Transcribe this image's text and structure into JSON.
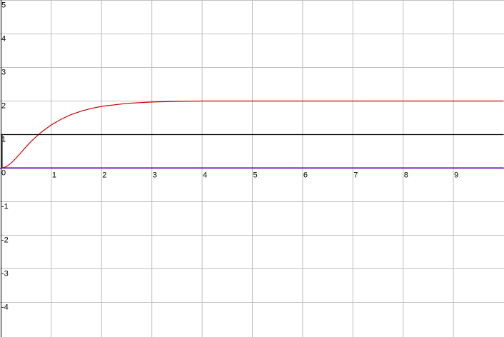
{
  "chart_data": {
    "type": "line",
    "title": "",
    "xlabel": "",
    "ylabel": "",
    "xlim": [
      0,
      10
    ],
    "ylim": [
      -4.7,
      5
    ],
    "grid": true,
    "x_ticks": [
      {
        "value": 1,
        "label": "1"
      },
      {
        "value": 2,
        "label": "2"
      },
      {
        "value": 3,
        "label": "3"
      },
      {
        "value": 4,
        "label": "4"
      },
      {
        "value": 5,
        "label": "5"
      },
      {
        "value": 6,
        "label": "6"
      },
      {
        "value": 7,
        "label": "7"
      },
      {
        "value": 8,
        "label": "8"
      },
      {
        "value": 9,
        "label": "9"
      }
    ],
    "y_ticks": [
      {
        "value": 5,
        "label": "5"
      },
      {
        "value": 4,
        "label": "4"
      },
      {
        "value": 3,
        "label": "3"
      },
      {
        "value": 2,
        "label": "2"
      },
      {
        "value": 1,
        "label": "1"
      },
      {
        "value": 0,
        "label": "0"
      },
      {
        "value": -1,
        "label": "-1"
      },
      {
        "value": -2,
        "label": "-2"
      },
      {
        "value": -3,
        "label": "-3"
      },
      {
        "value": -4,
        "label": "-4"
      }
    ],
    "series": [
      {
        "color": "#cc0000",
        "x": [
          0,
          0.1,
          0.2,
          0.3,
          0.4,
          0.5,
          0.6,
          0.7,
          0.8,
          0.9,
          1.0,
          1.2,
          1.4,
          1.6,
          1.8,
          2.0,
          2.5,
          3.0,
          3.5,
          4.0,
          5.0,
          6.0,
          7.0,
          8.0,
          9.0,
          10.0
        ],
        "y": [
          0,
          0.04,
          0.15,
          0.3,
          0.47,
          0.64,
          0.8,
          0.94,
          1.07,
          1.18,
          1.29,
          1.46,
          1.6,
          1.7,
          1.78,
          1.84,
          1.93,
          1.97,
          1.99,
          2.0,
          2.0,
          2.0,
          2.0,
          2.0,
          2.0,
          2.0
        ]
      },
      {
        "color": "#000000",
        "x": [
          0,
          0.02,
          0.02,
          10.0
        ],
        "y": [
          0,
          0,
          1,
          1
        ]
      },
      {
        "color": "#2200cc",
        "x": [
          0,
          10.0
        ],
        "y": [
          0,
          0
        ]
      },
      {
        "color": "#aa00aa",
        "x": [
          0,
          10.0
        ],
        "y": [
          0.01,
          0.01
        ]
      }
    ]
  }
}
